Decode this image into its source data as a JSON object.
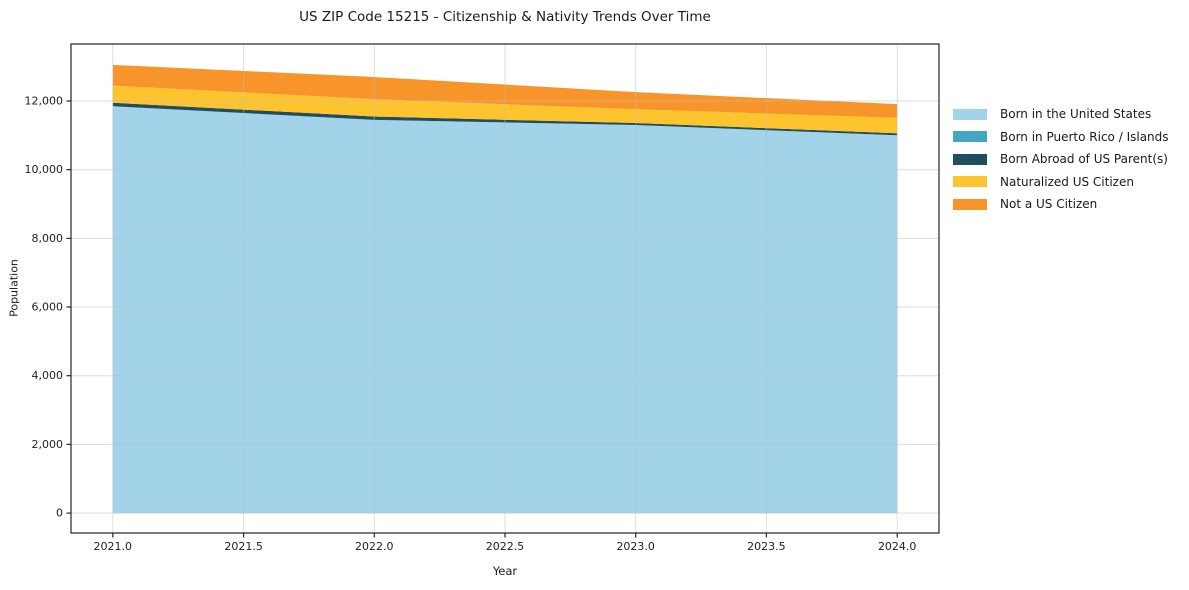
{
  "chart_data": {
    "type": "area",
    "stacked": true,
    "title": "US ZIP Code 15215 - Citizenship & Nativity Trends Over Time",
    "xlabel": "Year",
    "ylabel": "Population",
    "x": [
      2021,
      2022,
      2023,
      2024
    ],
    "series": [
      {
        "name": "Born in the United States",
        "color": "#A3D3E9",
        "values": [
          11850,
          11450,
          11300,
          11000
        ]
      },
      {
        "name": "Born in Puerto Rico / Islands",
        "color": "#45A5C6",
        "values": [
          0,
          0,
          0,
          0
        ]
      },
      {
        "name": "Born Abroad of US Parent(s)",
        "color": "#1F4E5F",
        "values": [
          100,
          100,
          60,
          60
        ]
      },
      {
        "name": "Naturalized US Citizen",
        "color": "#FDC42D",
        "values": [
          500,
          500,
          400,
          450
        ]
      },
      {
        "name": "Not a US Citizen",
        "color": "#F8952A",
        "values": [
          600,
          650,
          500,
          400
        ]
      }
    ],
    "totals_by_year": [
      13050,
      12700,
      12260,
      11910
    ],
    "xlim": [
      2020.84,
      2024.16
    ],
    "ylim": [
      -580,
      13660
    ],
    "xticks": {
      "values": [
        2021,
        2021.5,
        2022,
        2022.5,
        2023,
        2023.5,
        2024
      ],
      "labels": [
        "2021.0",
        "2021.5",
        "2022.0",
        "2022.5",
        "2023.0",
        "2023.5",
        "2024.0"
      ]
    },
    "yticks": {
      "values": [
        0,
        2000,
        4000,
        6000,
        8000,
        10000,
        12000
      ],
      "labels": [
        "0",
        "2,000",
        "4,000",
        "6,000",
        "8,000",
        "10,000",
        "12,000"
      ]
    },
    "grid": true,
    "legend_position": "right-outside",
    "colors": {
      "grid": "#e3e3e3",
      "spine": "#262626",
      "text": "#1a1a1a",
      "background": "#ffffff"
    }
  }
}
